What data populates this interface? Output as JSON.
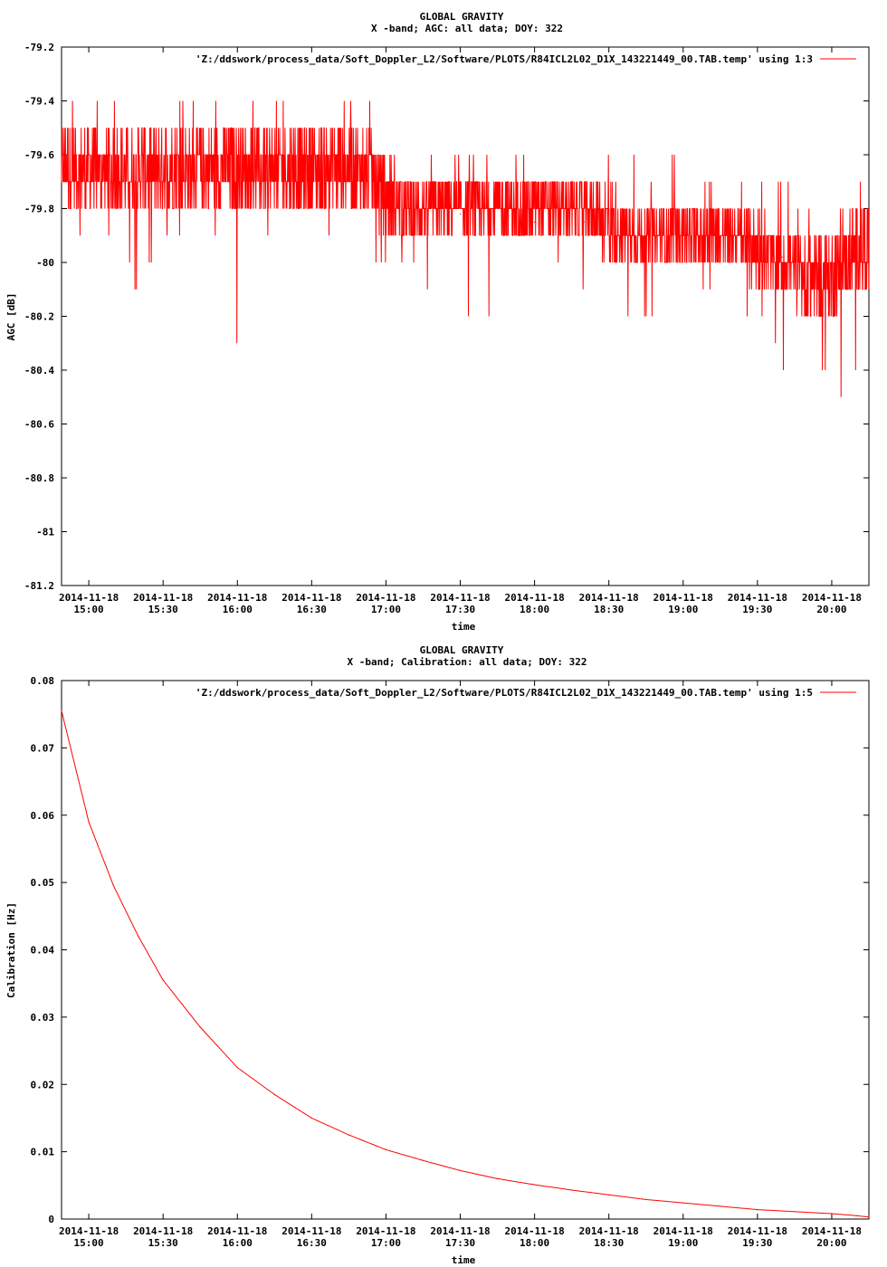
{
  "chart_data": [
    {
      "type": "line",
      "title": "GLOBAL GRAVITY",
      "subtitle": "X -band; AGC: all data; DOY: 322",
      "xlabel": "time",
      "ylabel": "AGC [dB]",
      "ylim": [
        -81.2,
        -79.2
      ],
      "yticks": [
        -79.2,
        -79.4,
        -79.6,
        -79.8,
        -80,
        -80.2,
        -80.4,
        -80.6,
        -80.8,
        -81,
        -81.2
      ],
      "ytick_labels": [
        "-79.2",
        "-79.4",
        "-79.6",
        "-79.8",
        "-80",
        "-80.2",
        "-80.4",
        "-80.6",
        "-80.8",
        "-81",
        "-81.2"
      ],
      "xtick_dates": [
        "2014-11-18",
        "2014-11-18",
        "2014-11-18",
        "2014-11-18",
        "2014-11-18",
        "2014-11-18",
        "2014-11-18",
        "2014-11-18",
        "2014-11-18",
        "2014-11-18",
        "2014-11-18"
      ],
      "xtick_times": [
        "15:00",
        "15:30",
        "16:00",
        "16:30",
        "17:00",
        "17:30",
        "18:00",
        "18:30",
        "19:00",
        "19:30",
        "20:00"
      ],
      "xlim": [
        "14:49",
        "20:15"
      ],
      "grid": false,
      "legend_position": "top-right",
      "series": [
        {
          "name": "'Z:/ddswork/process_data/Soft_Doppler_L2/Software/PLOTS/R84ICL2L02_D1X_143221449_00.TAB.temp' using 1:3",
          "color": "#ff0000",
          "x": [
            "14:49",
            "15:00",
            "15:10",
            "15:20",
            "15:30",
            "15:40",
            "15:50",
            "16:00",
            "16:10",
            "16:20",
            "16:30",
            "16:40",
            "16:50",
            "17:00",
            "17:10",
            "17:20",
            "17:30",
            "17:40",
            "17:50",
            "18:00",
            "18:10",
            "18:20",
            "18:30",
            "18:40",
            "18:50",
            "19:00",
            "19:10",
            "19:20",
            "19:30",
            "19:40",
            "19:50",
            "20:00",
            "20:10",
            "20:15"
          ],
          "values": [
            -79.7,
            -79.7,
            -79.7,
            -79.7,
            -79.7,
            -79.7,
            -79.7,
            -79.7,
            -79.7,
            -79.7,
            -79.7,
            -79.7,
            -79.7,
            -79.75,
            -79.78,
            -79.8,
            -79.82,
            -79.8,
            -79.8,
            -79.85,
            -79.85,
            -79.85,
            -79.85,
            -79.88,
            -79.9,
            -79.9,
            -79.9,
            -79.95,
            -79.95,
            -79.98,
            -80.05,
            -80.1,
            -80.0,
            -79.95
          ],
          "band_high": [
            -79.5,
            -79.5,
            -79.5,
            -79.5,
            -79.5,
            -79.5,
            -79.5,
            -79.5,
            -79.5,
            -79.5,
            -79.5,
            -79.5,
            -79.5,
            -79.6,
            -79.7,
            -79.7,
            -79.7,
            -79.7,
            -79.7,
            -79.7,
            -79.7,
            -79.7,
            -79.7,
            -79.8,
            -79.8,
            -79.8,
            -79.8,
            -79.8,
            -79.8,
            -79.9,
            -79.9,
            -79.9,
            -79.8,
            -79.8
          ],
          "band_low": [
            -79.8,
            -79.8,
            -79.8,
            -79.8,
            -79.8,
            -79.8,
            -79.8,
            -79.8,
            -79.8,
            -79.8,
            -79.8,
            -79.8,
            -79.8,
            -79.9,
            -79.9,
            -79.9,
            -79.9,
            -79.9,
            -79.9,
            -79.9,
            -79.9,
            -79.9,
            -80.0,
            -80.0,
            -80.0,
            -80.0,
            -80.0,
            -80.0,
            -80.1,
            -80.1,
            -80.2,
            -80.2,
            -80.1,
            -80.1
          ],
          "peak_high": [
            -79.4,
            -79.4,
            -79.4,
            -79.3,
            -79.4,
            -79.4,
            -79.4,
            -79.4,
            -79.4,
            -79.4,
            -79.4,
            -79.4,
            -79.4,
            -79.5,
            -79.5,
            -79.6,
            -79.6,
            -79.6,
            -79.6,
            -79.6,
            -79.6,
            -79.6,
            -79.6,
            -79.6,
            -79.7,
            -79.6,
            -79.7,
            -79.7,
            -79.7,
            -79.7,
            -79.8,
            -79.8,
            -79.7,
            -79.7
          ],
          "peak_low": [
            -79.9,
            -79.9,
            -79.9,
            -80.1,
            -79.9,
            -79.9,
            -79.9,
            -80.3,
            -79.9,
            -79.9,
            -79.9,
            -79.9,
            -79.9,
            -80.0,
            -80.0,
            -80.1,
            -80.2,
            -80.2,
            -80.1,
            -80.0,
            -80.0,
            -80.1,
            -80.2,
            -80.2,
            -80.2,
            -80.1,
            -80.1,
            -80.2,
            -80.2,
            -80.4,
            -80.3,
            -80.5,
            -80.4,
            -80.5
          ]
        }
      ]
    },
    {
      "type": "line",
      "title": "GLOBAL GRAVITY",
      "subtitle": "X -band; Calibration: all data; DOY: 322",
      "xlabel": "time",
      "ylabel": "Calibration [Hz]",
      "ylim": [
        0,
        0.08
      ],
      "yticks": [
        0,
        0.01,
        0.02,
        0.03,
        0.04,
        0.05,
        0.06,
        0.07,
        0.08
      ],
      "ytick_labels": [
        "0",
        "0.01",
        "0.02",
        "0.03",
        "0.04",
        "0.05",
        "0.06",
        "0.07",
        "0.08"
      ],
      "xtick_dates": [
        "2014-11-18",
        "2014-11-18",
        "2014-11-18",
        "2014-11-18",
        "2014-11-18",
        "2014-11-18",
        "2014-11-18",
        "2014-11-18",
        "2014-11-18",
        "2014-11-18",
        "2014-11-18"
      ],
      "xtick_times": [
        "15:00",
        "15:30",
        "16:00",
        "16:30",
        "17:00",
        "17:30",
        "18:00",
        "18:30",
        "19:00",
        "19:30",
        "20:00"
      ],
      "xlim": [
        "14:49",
        "20:15"
      ],
      "grid": false,
      "legend_position": "top-right",
      "series": [
        {
          "name": "'Z:/ddswork/process_data/Soft_Doppler_L2/Software/PLOTS/R84ICL2L02_D1X_143221449_00.TAB.temp' using 1:5",
          "color": "#ff0000",
          "x": [
            "14:49",
            "14:55",
            "15:00",
            "15:10",
            "15:20",
            "15:30",
            "15:45",
            "16:00",
            "16:15",
            "16:30",
            "16:45",
            "17:00",
            "17:15",
            "17:30",
            "17:45",
            "18:00",
            "18:15",
            "18:30",
            "18:45",
            "19:00",
            "19:15",
            "19:30",
            "19:45",
            "20:00",
            "20:10",
            "20:15"
          ],
          "values": [
            0.0755,
            0.0665,
            0.059,
            0.0495,
            0.042,
            0.0355,
            0.0285,
            0.0225,
            0.0185,
            0.015,
            0.0125,
            0.0103,
            0.0087,
            0.0072,
            0.006,
            0.0051,
            0.0043,
            0.0036,
            0.0029,
            0.0024,
            0.0019,
            0.0014,
            0.0011,
            0.0008,
            0.0005,
            0.0003
          ]
        }
      ]
    }
  ]
}
